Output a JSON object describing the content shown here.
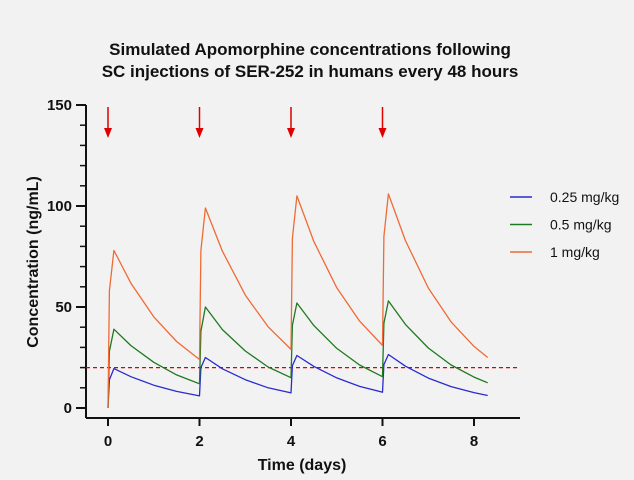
{
  "chart_data": {
    "type": "line",
    "title": [
      "Simulated Apomorphine concentrations following",
      "SC injections of SER-252 in humans every 48 hours"
    ],
    "xlabel": "Time (days)",
    "ylabel": "Concentration (ng/mL)",
    "xlim": [
      -0.5,
      9
    ],
    "ylim": [
      0,
      150
    ],
    "xticks": [
      0,
      2,
      4,
      6,
      8
    ],
    "yticks": [
      0,
      50,
      100,
      150
    ],
    "grid": false,
    "legend_position": "right",
    "threshold": {
      "value": 20,
      "color": "#e00000",
      "style": "dashed"
    },
    "dose_arrows": {
      "times": [
        0,
        2,
        4,
        6
      ],
      "color": "#e00000"
    },
    "series": [
      {
        "name": "0.25 mg/kg",
        "color": "#2a2ad0",
        "x": [
          0,
          0.03,
          0.13,
          0.5,
          1,
          1.5,
          2,
          2.03,
          2.13,
          2.5,
          3,
          3.5,
          4,
          4.03,
          4.13,
          4.5,
          5,
          5.5,
          6,
          6.03,
          6.13,
          6.5,
          7,
          7.5,
          8,
          8.3
        ],
        "y": [
          0,
          14,
          19.5,
          15.5,
          11.3,
          8.2,
          6,
          20,
          25,
          19.4,
          14,
          10,
          7.5,
          21,
          26,
          20.6,
          14.9,
          10.7,
          7.8,
          21.5,
          26.5,
          20.7,
          14.8,
          10.6,
          7.6,
          6.2
        ]
      },
      {
        "name": "0.5 mg/kg",
        "color": "#1e7a1e",
        "x": [
          0,
          0.03,
          0.13,
          0.5,
          1,
          1.5,
          2,
          2.03,
          2.13,
          2.5,
          3,
          3.5,
          4,
          4.03,
          4.13,
          4.5,
          5,
          5.5,
          6,
          6.03,
          6.13,
          6.5,
          7,
          7.5,
          8,
          8.3
        ],
        "y": [
          0,
          28,
          39,
          30.9,
          22.6,
          16.4,
          12,
          38,
          50,
          38.8,
          28.2,
          20.3,
          15,
          41,
          52,
          40.8,
          29.5,
          21.3,
          15.5,
          42,
          53,
          41.4,
          29.7,
          21.3,
          15.3,
          12.5
        ]
      },
      {
        "name": "1 mg/kg",
        "color": "#f06a35",
        "x": [
          0,
          0.03,
          0.13,
          0.5,
          1,
          1.5,
          2,
          2.03,
          2.13,
          2.5,
          3,
          3.5,
          4,
          4.03,
          4.13,
          4.5,
          5,
          5.5,
          6,
          6.03,
          6.13,
          6.5,
          7,
          7.5,
          8,
          8.3
        ],
        "y": [
          0,
          58,
          78,
          61.8,
          45.1,
          32.9,
          24,
          78,
          99,
          77.6,
          55.9,
          40.2,
          29,
          84,
          105,
          82.4,
          59.5,
          43,
          31,
          85,
          106,
          82.9,
          59.4,
          42.6,
          30.5,
          25
        ]
      }
    ]
  }
}
